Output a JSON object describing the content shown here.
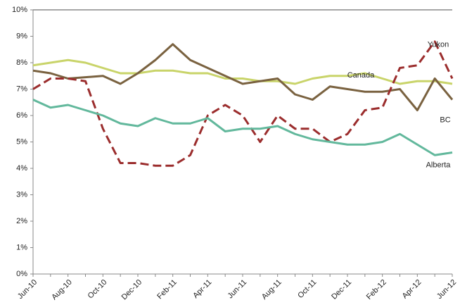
{
  "chart_data": {
    "type": "line",
    "categories": [
      "Jun-10",
      null,
      "Aug-10",
      null,
      "Oct-10",
      null,
      "Dec-10",
      null,
      "Feb-11",
      null,
      "Apr-11",
      null,
      "Jun-11",
      null,
      "Aug-11",
      null,
      "Oct-11",
      null,
      "Dec-11",
      null,
      "Feb-12",
      null,
      "Apr-12",
      null,
      "Jun-12"
    ],
    "series": [
      {
        "name": "Canada",
        "color": "#c9d46a",
        "values": [
          7.9,
          8.0,
          8.1,
          8.0,
          7.8,
          7.6,
          7.6,
          7.7,
          7.7,
          7.6,
          7.6,
          7.4,
          7.4,
          7.3,
          7.3,
          7.2,
          7.4,
          7.5,
          7.5,
          7.6,
          7.4,
          7.2,
          7.3,
          7.3,
          7.2
        ]
      },
      {
        "name": "BC",
        "color": "#7a6240",
        "values": [
          7.7,
          7.6,
          7.4,
          7.45,
          7.5,
          7.2,
          7.6,
          8.1,
          8.7,
          8.1,
          7.8,
          7.5,
          7.2,
          7.3,
          7.4,
          6.8,
          6.6,
          7.1,
          7.0,
          6.9,
          6.9,
          7.0,
          6.2,
          7.4,
          6.6
        ]
      },
      {
        "name": "Yukon",
        "color": "#9b2d2d",
        "dashed": true,
        "values": [
          7.0,
          7.4,
          7.4,
          7.3,
          5.5,
          4.2,
          4.2,
          4.1,
          4.1,
          4.5,
          6.0,
          6.4,
          6.0,
          5.0,
          6.0,
          5.5,
          5.5,
          5.0,
          5.3,
          6.2,
          6.3,
          7.8,
          7.9,
          8.8,
          7.4
        ]
      },
      {
        "name": "Alberta",
        "color": "#62b89c",
        "values": [
          6.6,
          6.3,
          6.4,
          6.2,
          6.0,
          5.7,
          5.6,
          5.9,
          5.7,
          5.7,
          5.9,
          5.4,
          5.5,
          5.5,
          5.6,
          5.3,
          5.1,
          5.0,
          4.9,
          4.9,
          5.0,
          5.3,
          4.9,
          4.5,
          4.6
        ]
      }
    ],
    "ylim": [
      0,
      10
    ],
    "yticks": [
      {
        "value": 0,
        "label": "0%"
      },
      {
        "value": 1,
        "label": "1%"
      },
      {
        "value": 2,
        "label": "2%"
      },
      {
        "value": 3,
        "label": "3%"
      },
      {
        "value": 4,
        "label": "4%"
      },
      {
        "value": 5,
        "label": "5%"
      },
      {
        "value": 6,
        "label": "6%"
      },
      {
        "value": 7,
        "label": "7%"
      },
      {
        "value": 8,
        "label": "8%"
      },
      {
        "value": 9,
        "label": "9%"
      },
      {
        "value": 10,
        "label": "10%"
      }
    ]
  }
}
